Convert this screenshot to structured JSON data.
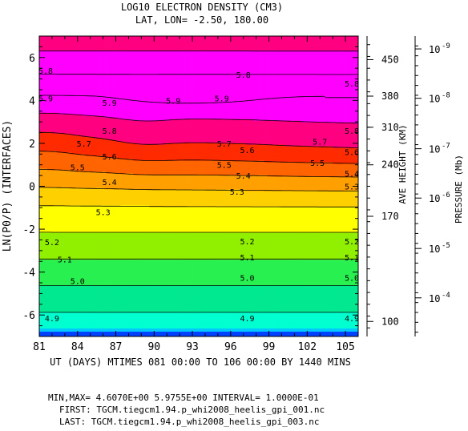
{
  "chart_data": {
    "type": "heatmap",
    "title": "LOG10 ELECTRON DENSITY (CM3)",
    "subtitle": "LAT, LON= -2.50,   180.00",
    "xlabel": "UT (DAYS) MTIMES 081 00:00 TO 106 00:00 BY 1440 MINS",
    "ylabel": "LN(P0/P) (INTERFACES)",
    "right_axis_1_label": "AVE HEIGHT (KM)",
    "right_axis_2_label": "PRESSURE (Mb)",
    "xlim": [
      81,
      106
    ],
    "ylim": [
      -7,
      7
    ],
    "x_ticks": [
      81,
      84,
      87,
      90,
      93,
      96,
      99,
      102,
      105
    ],
    "y_ticks": [
      -6,
      -4,
      -2,
      0,
      2,
      4,
      6
    ],
    "height_ticks": [
      {
        "z": -6.3,
        "label": "100"
      },
      {
        "z": -1.4,
        "label": "170"
      },
      {
        "z": 1.0,
        "label": "240"
      },
      {
        "z": 2.75,
        "label": "310"
      },
      {
        "z": 4.2,
        "label": "380"
      },
      {
        "z": 5.9,
        "label": "450"
      }
    ],
    "pressure_ticks": [
      {
        "z": 6.4,
        "base": "10",
        "exp": "-9"
      },
      {
        "z": 4.1,
        "base": "10",
        "exp": "-8"
      },
      {
        "z": 1.75,
        "base": "10",
        "exp": "-7"
      },
      {
        "z": -0.55,
        "base": "10",
        "exp": "-6"
      },
      {
        "z": -2.9,
        "base": "10",
        "exp": "-5"
      },
      {
        "z": -5.2,
        "base": "10",
        "exp": "-4"
      }
    ],
    "levels": [
      4.9,
      5.0,
      5.1,
      5.2,
      5.3,
      5.4,
      5.5,
      5.6,
      5.7,
      5.8,
      5.9
    ],
    "band_colors": [
      "#0040ff",
      "#00c8ff",
      "#00ffd0",
      "#00e890",
      "#28f050",
      "#90f000",
      "#ffff00",
      "#ffd000",
      "#ffa000",
      "#ff6400",
      "#ff2a00",
      "#ff0080",
      "#ff00ff"
    ],
    "contour_label_positions": [
      {
        "level": 5.9,
        "x": 81.5,
        "y": 4.1
      },
      {
        "level": 5.9,
        "x": 86.5,
        "y": 3.9
      },
      {
        "level": 5.9,
        "x": 91.5,
        "y": 4.0
      },
      {
        "level": 5.9,
        "x": 95.3,
        "y": 4.1
      },
      {
        "level": 5.8,
        "x": 81.5,
        "y": 5.4
      },
      {
        "level": 5.8,
        "x": 97.0,
        "y": 5.2
      },
      {
        "level": 5.8,
        "x": 105.5,
        "y": 4.8
      },
      {
        "level": 5.8,
        "x": 86.5,
        "y": 2.6
      },
      {
        "level": 5.8,
        "x": 105.5,
        "y": 2.6
      },
      {
        "level": 5.7,
        "x": 84.5,
        "y": 2.0
      },
      {
        "level": 5.7,
        "x": 95.5,
        "y": 2.0
      },
      {
        "level": 5.7,
        "x": 103.0,
        "y": 2.1
      },
      {
        "level": 5.6,
        "x": 86.5,
        "y": 1.4
      },
      {
        "level": 5.6,
        "x": 97.3,
        "y": 1.7
      },
      {
        "level": 5.6,
        "x": 105.5,
        "y": 1.6
      },
      {
        "level": 5.5,
        "x": 84.0,
        "y": 0.9
      },
      {
        "level": 5.5,
        "x": 95.5,
        "y": 1.0
      },
      {
        "level": 5.5,
        "x": 102.8,
        "y": 1.1
      },
      {
        "level": 5.4,
        "x": 86.5,
        "y": 0.2
      },
      {
        "level": 5.4,
        "x": 97.0,
        "y": 0.5
      },
      {
        "level": 5.4,
        "x": 105.5,
        "y": 0.6
      },
      {
        "level": 5.3,
        "x": 86.0,
        "y": -1.2
      },
      {
        "level": 5.3,
        "x": 96.5,
        "y": -0.25
      },
      {
        "level": 5.3,
        "x": 105.5,
        "y": 0.0
      },
      {
        "level": 5.2,
        "x": 82.0,
        "y": -2.6
      },
      {
        "level": 5.2,
        "x": 97.3,
        "y": -2.55
      },
      {
        "level": 5.2,
        "x": 105.5,
        "y": -2.55
      },
      {
        "level": 5.1,
        "x": 83.0,
        "y": -3.4
      },
      {
        "level": 5.1,
        "x": 97.3,
        "y": -3.3
      },
      {
        "level": 5.1,
        "x": 105.5,
        "y": -3.3
      },
      {
        "level": 5.0,
        "x": 84.0,
        "y": -4.4
      },
      {
        "level": 5.0,
        "x": 97.3,
        "y": -4.25
      },
      {
        "level": 5.0,
        "x": 105.5,
        "y": -4.25
      },
      {
        "level": 4.9,
        "x": 82.0,
        "y": -6.15
      },
      {
        "level": 4.9,
        "x": 97.3,
        "y": -6.15
      },
      {
        "level": 4.9,
        "x": 105.5,
        "y": -6.15
      }
    ]
  },
  "footer": {
    "minmax": "MIN,MAX=  4.6070E+00  5.9755E+00 INTERVAL=  1.0000E-01",
    "first": "FIRST: TGCM.tiegcm1.94.p_whi2008_heelis_gpi_001.nc",
    "last": "LAST:  TGCM.tiegcm1.94.p_whi2008_heelis_gpi_003.nc"
  }
}
